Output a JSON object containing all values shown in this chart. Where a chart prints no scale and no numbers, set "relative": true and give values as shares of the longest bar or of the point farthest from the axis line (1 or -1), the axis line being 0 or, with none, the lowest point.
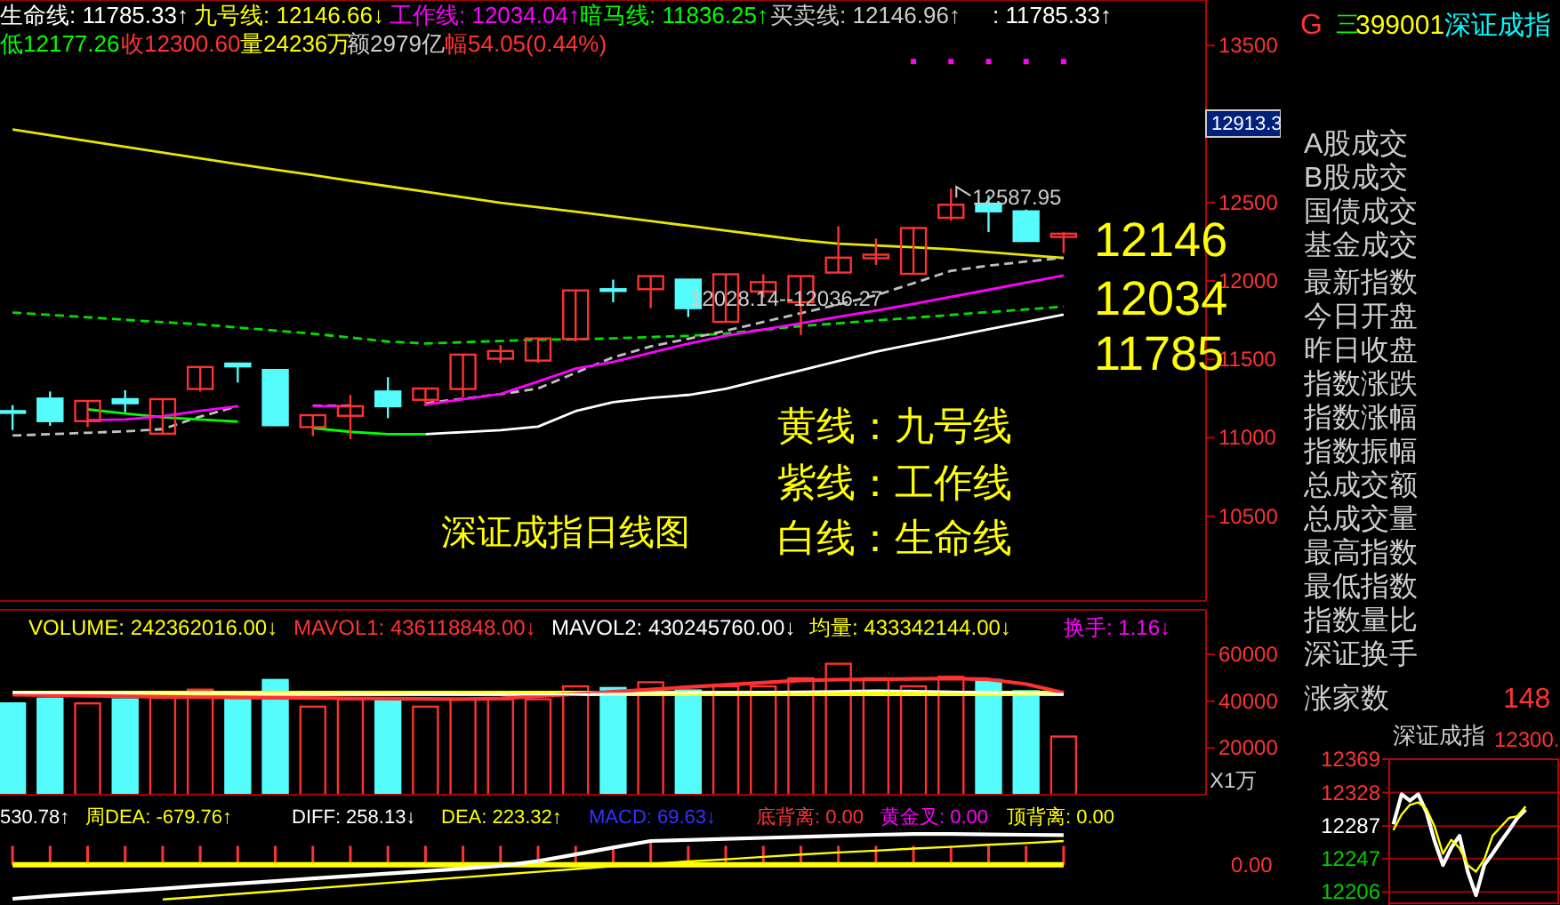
{
  "chart_data": [
    {
      "type": "candlestick",
      "categories": [
        null,
        null,
        null,
        null,
        null,
        null,
        null,
        null,
        null,
        null,
        null,
        null,
        null,
        null,
        null,
        null,
        null,
        null,
        null,
        null,
        null,
        null,
        null,
        null,
        null,
        null,
        null,
        null,
        null
      ],
      "ohlc": [
        [
          11170,
          11208,
          11049,
          11165
        ],
        [
          11250,
          11295,
          11076,
          11106
        ],
        [
          11106,
          11235,
          11068,
          11235
        ],
        [
          11246,
          11303,
          11163,
          11220
        ],
        [
          11026,
          11246,
          11026,
          11246
        ],
        [
          11311,
          11451,
          11295,
          11451
        ],
        [
          11473,
          11473,
          11352,
          11455
        ],
        [
          11432,
          11432,
          11075,
          11080
        ],
        [
          11068,
          11144,
          11011,
          11144
        ],
        [
          11140,
          11273,
          10992,
          11201
        ],
        [
          11295,
          11386,
          11125,
          11201
        ],
        [
          11242,
          11314,
          11201,
          11314
        ],
        [
          11311,
          11530,
          11258,
          11530
        ],
        [
          11504,
          11591,
          11477,
          11553
        ],
        [
          11492,
          11633,
          11477,
          11633
        ],
        [
          11629,
          11939,
          11614,
          11939
        ],
        [
          11947,
          12008,
          11864,
          11940
        ],
        [
          11947,
          12030,
          11826,
          12030
        ],
        [
          12008,
          12008,
          11769,
          11826
        ],
        [
          11739,
          12042,
          11739,
          12042
        ],
        [
          11932,
          12042,
          11894,
          11992
        ],
        [
          11864,
          12030,
          11655,
          12030
        ],
        [
          12053,
          12348,
          12053,
          12148
        ],
        [
          12144,
          12269,
          12102,
          12167
        ],
        [
          12045,
          12345,
          12045,
          12337
        ],
        [
          12402,
          12587.95,
          12383,
          12485
        ],
        [
          12492,
          12545,
          12311,
          12443
        ],
        [
          12443,
          12455,
          12254,
          12254
        ],
        [
          12280,
          12310,
          12177.26,
          12300.6
        ]
      ],
      "series": [
        {
          "type": "line",
          "color": "#e6e600",
          "line_style": "solid",
          "values": [
            12965,
            12928,
            12891,
            12854,
            12818,
            12781,
            12744,
            12709,
            12674,
            12638,
            12603,
            12568,
            12533,
            12498,
            12469,
            12441,
            12411,
            12381,
            12351,
            12321,
            12290,
            12260,
            12237,
            12225,
            12214,
            12202,
            12183,
            12165,
            12146.66
          ]
        },
        {
          "type": "line",
          "color": "#00e000",
          "line_style": "dashed",
          "values": [
            11798,
            11783,
            11768,
            11752,
            11737,
            11723,
            11703,
            11683,
            11663,
            11639,
            11613,
            11601,
            11609,
            11617,
            11625,
            11628,
            11634,
            11642,
            11650,
            11664,
            11688,
            11712,
            11730,
            11748,
            11765,
            11783,
            11801,
            11818,
            11836.25
          ]
        },
        {
          "type": "line",
          "color": "#c0c0c0",
          "line_style": "dashed",
          "values": [
            11014,
            11023,
            11032,
            11041,
            11055,
            11135,
            11201,
            null,
            11204,
            11205,
            null,
            11220,
            11249,
            11278,
            11314,
            11414,
            11513,
            11582,
            11631,
            11682,
            11738,
            11794,
            11850,
            11908,
            11985,
            12064,
            12097,
            12123,
            12146.96
          ]
        },
        {
          "type": "line",
          "color": "#00ff00",
          "line_style": "solid",
          "values": [
            null,
            null,
            11181,
            11155,
            11131,
            11117,
            11103,
            null,
            11062,
            11038,
            11023,
            11023,
            null,
            null,
            null,
            null,
            null,
            null,
            null,
            null,
            null,
            null,
            null,
            null,
            null,
            null,
            null,
            null,
            null
          ]
        },
        {
          "type": "line",
          "color": "#ffffff",
          "line_style": "solid",
          "values": [
            null,
            null,
            null,
            null,
            null,
            null,
            null,
            null,
            null,
            null,
            null,
            11023,
            11036,
            11048,
            11071,
            11170,
            11227,
            11254,
            11273,
            11312,
            11371,
            11430,
            11489,
            11548,
            11597,
            11644,
            11691,
            11738,
            11785.33
          ]
        },
        {
          "type": "line",
          "color": "#ff00ff",
          "line_style": "solid",
          "values": [
            null,
            null,
            11112,
            11117,
            11138,
            11172,
            11201,
            null,
            11201,
            11201,
            null,
            11211,
            11245,
            11279,
            11359,
            11441,
            11484,
            11542,
            11600,
            11650,
            11690,
            11730,
            11771,
            11811,
            11853,
            11898,
            11943,
            11989,
            12034.04
          ]
        },
        {
          "type": "scatter",
          "color": "#ff00ff",
          "marker": "square",
          "values": [
            null,
            null,
            null,
            null,
            null,
            null,
            null,
            null,
            null,
            null,
            null,
            null,
            null,
            null,
            null,
            null,
            null,
            null,
            null,
            null,
            null,
            null,
            null,
            null,
            13398,
            13398,
            13398,
            13398,
            13398
          ]
        }
      ],
      "ylim": [
        9960,
        13790
      ],
      "yticks": [
        10500,
        11000,
        11500,
        12000,
        12500,
        13500
      ],
      "tick_labels": "y",
      "annotations": [
        "生命线: 11785.33↑",
        "九号线: 12146.66↓",
        "工作线: 12034.04↑",
        "暗马线: 11836.25↑",
        "买卖线: 12146.96↑",
        ": 11785.33↑",
        "低12177.26",
        "收12300.60",
        "量24236万",
        "额2979亿",
        "幅54.05(0.44%)",
        "12146",
        "12034",
        "11785",
        "黄线：九号线",
        "紫线：工作线",
        "白线：生命线",
        "深证成指日线图",
        "12028.14--12036.27",
        "12913.3",
        "12587.95"
      ]
    },
    {
      "type": "bar",
      "categories": [
        null,
        null,
        null,
        null,
        null,
        null,
        null,
        null,
        null,
        null,
        null,
        null,
        null,
        null,
        null,
        null,
        null,
        null,
        null,
        null,
        null,
        null,
        null,
        null,
        null,
        null,
        null,
        null,
        null
      ],
      "values": [
        39050,
        41120,
        39050,
        40780,
        41470,
        44920,
        41810,
        49050,
        37650,
        40780,
        40080,
        37650,
        40780,
        40780,
        40780,
        46310,
        45620,
        48060,
        44580,
        46310,
        46310,
        49740,
        55970,
        49740,
        46310,
        50420,
        49050,
        44260,
        24870
      ],
      "colors": [
        "#54fcfc",
        "#54fcfc",
        "#ff3232",
        "#54fcfc",
        "#ff3232",
        "#ff3232",
        "#54fcfc",
        "#54fcfc",
        "#ff3232",
        "#ff3232",
        "#54fcfc",
        "#ff3232",
        "#ff3232",
        "#ff3232",
        "#ff3232",
        "#ff3232",
        "#54fcfc",
        "#ff3232",
        "#54fcfc",
        "#ff3232",
        "#ff3232",
        "#ff3232",
        "#ff3232",
        "#ff3232",
        "#ff3232",
        "#ff3232",
        "#54fcfc",
        "#54fcfc",
        "#ff3232"
      ],
      "series": [
        {
          "type": "line",
          "color": "#ffff00",
          "values": [
            43334,
            43334,
            43334,
            43334,
            43334,
            43334,
            43334,
            43334,
            43334,
            43334,
            43334,
            43334,
            43334,
            43334,
            43334,
            43334,
            43334,
            43334,
            43334,
            43334,
            43334,
            43334,
            43334,
            43334,
            43334,
            43334,
            43334,
            43334,
            43334
          ]
        },
        {
          "type": "line",
          "color": "#ff3232",
          "values": [
            42770,
            42540,
            42300,
            42060,
            41830,
            41690,
            41570,
            41450,
            41330,
            41210,
            41080,
            40960,
            40850,
            41160,
            42120,
            43080,
            44050,
            45010,
            45970,
            46930,
            47890,
            48860,
            49180,
            49340,
            49500,
            49660,
            49290,
            47280,
            43612
          ]
        },
        {
          "type": "line",
          "color": "#ffffff",
          "values": [
            43560,
            43510,
            43460,
            43410,
            43360,
            43320,
            43270,
            43220,
            43170,
            43120,
            43070,
            43030,
            42980,
            42930,
            42880,
            42910,
            43110,
            43310,
            43510,
            43710,
            43910,
            44110,
            44310,
            44510,
            44380,
            44040,
            43700,
            43370,
            43025
          ]
        }
      ],
      "ylim": [
        0,
        79000
      ],
      "yticks": [
        20000,
        40000,
        60000
      ],
      "tick_labels": "y",
      "annotations": [
        "VOLUME: 242362016.00↓",
        "MAVOL1: 436118848.00↓",
        "MAVOL2: 430245760.00↓",
        "均量: 433342144.00↓",
        "换手: 1.16↓",
        "X1万"
      ]
    },
    {
      "type": "line",
      "relative": true,
      "tick_labels": false,
      "categories": [
        null,
        null,
        null,
        null,
        null,
        null,
        null,
        null,
        null,
        null,
        null,
        null,
        null,
        null,
        null,
        null,
        null,
        null,
        null,
        null,
        null,
        null,
        null,
        null,
        null,
        null,
        null,
        null,
        null
      ],
      "series": [
        {
          "type": "bar",
          "color": "#ff3232",
          "values": [
            0.55,
            0.55,
            0.55,
            0.55,
            0.55,
            0.55,
            0.55,
            0.55,
            0.55,
            0.55,
            0.55,
            0.55,
            0.55,
            0.55,
            0.55,
            0.55,
            0.55,
            0.71,
            0.55,
            0.55,
            0.55,
            0.55,
            0.55,
            0.55,
            0.55,
            0.55,
            0.55,
            0.55,
            0.55
          ]
        },
        {
          "type": "line",
          "color": "#ffff00",
          "values": [
            0,
            0,
            0,
            0,
            0,
            0,
            0,
            0,
            0,
            0,
            0,
            0,
            0,
            0,
            0,
            0,
            0,
            0,
            0,
            0,
            0,
            0,
            0,
            0,
            0,
            0,
            0,
            0,
            0
          ]
        },
        {
          "type": "line",
          "color": "#ffffff",
          "values": [
            -0.98,
            -0.9,
            -0.83,
            -0.76,
            -0.69,
            -0.61,
            -0.54,
            -0.47,
            -0.39,
            -0.32,
            -0.25,
            -0.18,
            -0.11,
            -0.03,
            0.11,
            0.3,
            0.5,
            0.69,
            0.72,
            0.75,
            0.78,
            0.81,
            0.84,
            0.87,
            0.89,
            0.89,
            0.88,
            0.87,
            0.86
          ]
        },
        {
          "type": "line",
          "color": "#ffff00",
          "values": [
            null,
            null,
            null,
            null,
            -1,
            -0.92,
            -0.84,
            -0.76,
            -0.68,
            -0.6,
            -0.52,
            -0.44,
            -0.36,
            -0.28,
            -0.2,
            -0.12,
            -0.04,
            0.03,
            0.1,
            0.16,
            0.23,
            0.3,
            0.36,
            0.41,
            0.47,
            0.52,
            0.58,
            0.63,
            0.69
          ]
        }
      ],
      "annotations": [
        "530.78↑",
        "周DEA: -679.76↑",
        "DIFF: 258.13↓",
        "DEA: 223.32↑",
        "MACD: 69.63↓",
        "底背离: 0.00",
        "黄金叉: 0.00",
        "顶背离: 0.00",
        "0.00"
      ]
    },
    {
      "type": "line",
      "title": "深证成指",
      "categories": [
        null,
        null,
        null,
        null,
        null,
        null,
        null,
        null,
        null,
        null,
        null,
        null,
        null,
        null,
        null,
        null,
        null
      ],
      "ylim": [
        12190,
        12369
      ],
      "yticks": [
        12206,
        12247,
        12287,
        12328,
        12369
      ],
      "tick_labels": "y",
      "grid": "y",
      "series": [
        {
          "color": "#ffffff",
          "values": [
            12289,
            12326,
            12318,
            12326,
            12304,
            12268,
            12239,
            12260,
            12275,
            12231,
            12202,
            12239,
            12253,
            12268,
            12282,
            12297,
            12307
          ]
        },
        {
          "color": "#ffff00",
          "values": [
            12282,
            12301,
            12313,
            12316,
            12308,
            12286,
            12253,
            12270,
            12260,
            12239,
            12231,
            12246,
            12275,
            12286,
            12297,
            12299,
            12311
          ]
        }
      ],
      "annotations": [
        "12300."
      ]
    },
    {
      "type": "other",
      "annotations": [
        "G",
        "三",
        "399001",
        "深证成指",
        "A股成交",
        "B股成交",
        "国债成交",
        "基金成交",
        "最新指数",
        "今日开盘",
        "昨日收盘",
        "指数涨跌",
        "指数涨幅",
        "指数振幅",
        "总成交额",
        "总成交量",
        "最高指数",
        "最低指数",
        "指数量比",
        "深证换手",
        "涨家数",
        "148"
      ]
    }
  ]
}
